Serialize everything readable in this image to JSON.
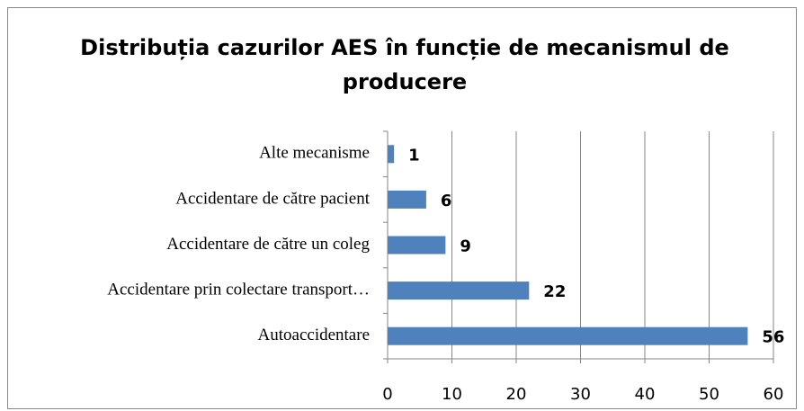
{
  "chart_data": {
    "type": "bar",
    "orientation": "horizontal",
    "title": "Distribuția cazurilor AES în funcție de mecanismul de producere",
    "categories": [
      "Alte mecanisme",
      "Accidentare de către pacient",
      "Accidentare de către un coleg",
      "Accidentare prin colectare transport…",
      "Autoaccidentare"
    ],
    "values": [
      1,
      6,
      9,
      22,
      56
    ],
    "color": "#4f81bd",
    "xlim": [
      0,
      60
    ],
    "xticks": [
      0,
      10,
      20,
      30,
      40,
      50,
      60
    ],
    "grid": true
  }
}
